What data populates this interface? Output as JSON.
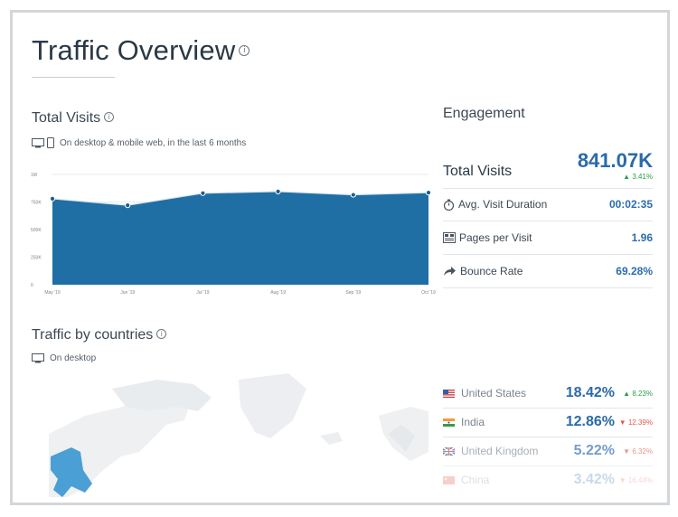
{
  "header": {
    "title": "Traffic Overview",
    "info_glyph": "i"
  },
  "total_visits": {
    "title": "Total Visits",
    "subtitle": "On desktop & mobile web, in the last 6 months",
    "icons": [
      "desktop-icon",
      "mobile-icon"
    ]
  },
  "chart_data": {
    "type": "area",
    "x": [
      "May '19",
      "Jun '19",
      "Jul '19",
      "Aug '19",
      "Sep '19",
      "Oct '19"
    ],
    "series": [
      {
        "values": [
          780000,
          720000,
          830000,
          845000,
          815000,
          835000
        ]
      }
    ],
    "yticks": [
      "1M",
      "750K",
      "500K",
      "250K",
      "0"
    ],
    "ylim": [
      0,
      1000000
    ],
    "grid": true,
    "color": "#1f6fa4"
  },
  "engagement": {
    "title": "Engagement",
    "total": {
      "label": "Total Visits",
      "value": "841.07K",
      "change": "3.41%"
    },
    "rows": [
      {
        "label": "Avg. Visit Duration",
        "value": "00:02:35",
        "icon": "stopwatch-icon"
      },
      {
        "label": "Pages per Visit",
        "value": "1.96",
        "icon": "pages-icon"
      },
      {
        "label": "Bounce Rate",
        "value": "69.28%",
        "icon": "share-arrow-icon"
      }
    ]
  },
  "countries": {
    "title": "Traffic by countries",
    "subtitle": "On desktop",
    "rows": [
      {
        "name": "United States",
        "share": "18.42%",
        "change": "8.23%",
        "direction": "up",
        "flag": "us-flag-icon"
      },
      {
        "name": "India",
        "share": "12.86%",
        "change": "12.39%",
        "direction": "down",
        "flag": "india-flag-icon"
      },
      {
        "name": "United Kingdom",
        "share": "5.22%",
        "change": "6.32%",
        "direction": "down",
        "flag": "uk-flag-icon"
      },
      {
        "name": "China",
        "share": "3.42%",
        "change": "16.44%",
        "direction": "down",
        "flag": "china-flag-icon"
      }
    ]
  },
  "colors": {
    "accent": "#2a6aab",
    "chart": "#1f6fa4",
    "up": "#2e9d4a",
    "down": "#e05b4f",
    "map_highlight": "#4a9fd4"
  }
}
